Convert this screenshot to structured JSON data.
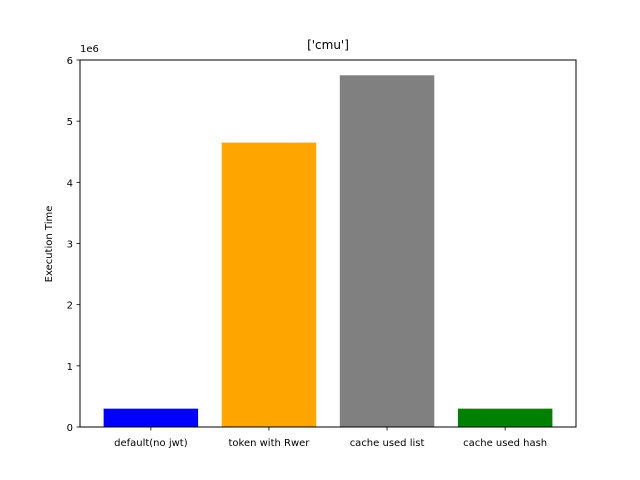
{
  "chart_data": {
    "type": "bar",
    "title": "['cmu']",
    "xlabel": "",
    "ylabel": "Execution Time",
    "offset_text": "1e6",
    "categories": [
      "default(no jwt)",
      "token with Rwer",
      "cache used list",
      "cache used hash"
    ],
    "values": [
      300000,
      4650000,
      5750000,
      300000
    ],
    "colors": [
      "#0000ff",
      "#ffa500",
      "#808080",
      "#008000"
    ],
    "ylim": [
      0,
      6000000
    ],
    "yticks": [
      0,
      1000000,
      2000000,
      3000000,
      4000000,
      5000000,
      6000000
    ],
    "ytick_labels": [
      "0",
      "1",
      "2",
      "3",
      "4",
      "5",
      "6"
    ],
    "grid": false,
    "legend": "none"
  }
}
